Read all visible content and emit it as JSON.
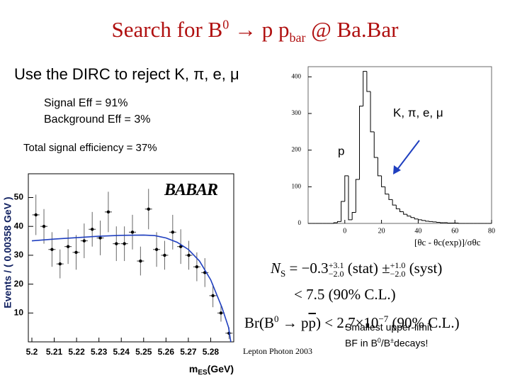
{
  "title": {
    "main": "Search for B",
    "sup": "0",
    "mid": " → p p",
    "sub": "bar",
    "end": " @ Ba.Bar"
  },
  "bullet": "Use the DIRC to reject K, π, e, μ",
  "signal_eff": "Signal Eff = 91%",
  "background_eff": "Background Eff = 3%",
  "total_eff": "Total signal efficiency = 37%",
  "logo": "BABAR",
  "result": {
    "ns": "N",
    "ns_sub": "S",
    "ns_eq": " = −0.3",
    "stat_up": "+3.1",
    "stat_dn": "−2.0",
    "stat": "(stat) ±",
    "syst_up": "+1.0",
    "syst_dn": "−2.0",
    "syst": "(syst)",
    "limit": "< 7.5 (90% C.L.)",
    "br": "Br(B",
    "br_sup": "0",
    "br_mid": " → p",
    "br_bar": "p",
    "br_end": ") < 2.7×10",
    "br_exp": "−7",
    "br_cl": " (90% C.L.)"
  },
  "conference": "Lepton Photon 2003",
  "note": {
    "line1": "Smallest upper-limit",
    "a": "BF in B",
    "sup1": "0",
    "b": "/B",
    "sup2": "±",
    "c": "decays!"
  },
  "chart_data": [
    {
      "type": "scatter",
      "x": [
        5.2018,
        5.2054,
        5.209,
        5.2126,
        5.2162,
        5.2198,
        5.2234,
        5.227,
        5.2306,
        5.2342,
        5.2378,
        5.2414,
        5.245,
        5.2486,
        5.2522,
        5.2558,
        5.2594,
        5.263,
        5.2666,
        5.2702,
        5.2738,
        5.2774,
        5.281,
        5.2846,
        5.2882
      ],
      "values": [
        44,
        40,
        32,
        27,
        33,
        31,
        35,
        39,
        36,
        45,
        34,
        34,
        38,
        28,
        46,
        32,
        30,
        38,
        33,
        30,
        26,
        24,
        16,
        10,
        3
      ],
      "errors": [
        7,
        6,
        6,
        5,
        6,
        6,
        6,
        6,
        6,
        7,
        6,
        6,
        6,
        5,
        7,
        6,
        5,
        6,
        6,
        5,
        5,
        5,
        4,
        3,
        2
      ],
      "color": "#000000",
      "fit": {
        "x": [
          5.2,
          5.21,
          5.22,
          5.23,
          5.24,
          5.25,
          5.255,
          5.26,
          5.265,
          5.27,
          5.275,
          5.28,
          5.285,
          5.288,
          5.289
        ],
        "values": [
          35,
          35.6,
          36.1,
          36.6,
          36.9,
          37,
          36.8,
          36,
          34.5,
          32,
          28,
          21.5,
          12,
          5,
          0
        ],
        "color": "#1f3fbf"
      },
      "xlim": [
        5.2,
        5.29
      ],
      "ylim": [
        0,
        57
      ],
      "xticks": [
        5.2,
        5.21,
        5.22,
        5.23,
        5.24,
        5.25,
        5.26,
        5.27,
        5.28
      ],
      "yticks": [
        10,
        20,
        30,
        40,
        50
      ],
      "ylabel": "Events / ( 0.00358 GeV )",
      "xlabel": {
        "main": "m",
        "sub": "ES",
        "unit": "(GeV)"
      }
    },
    {
      "type": "histogram",
      "bins": [
        -20,
        -18,
        -16,
        -14,
        -12,
        -10,
        -8,
        -6,
        -4,
        -2,
        0,
        2,
        4,
        6,
        8,
        10,
        12,
        14,
        16,
        18,
        20,
        22,
        24,
        26,
        28,
        30,
        32,
        34,
        36,
        38,
        40,
        42,
        44,
        46,
        48,
        50,
        52,
        54,
        56,
        58,
        60,
        62,
        64,
        66,
        68,
        70,
        72,
        74,
        76,
        78,
        80
      ],
      "values": [
        0,
        0,
        0,
        0,
        0,
        0,
        0,
        2,
        5,
        60,
        130,
        10,
        30,
        120,
        320,
        415,
        360,
        250,
        180,
        130,
        100,
        80,
        65,
        50,
        40,
        32,
        25,
        20,
        16,
        12,
        10,
        8,
        6,
        5,
        4,
        3,
        2,
        2,
        1,
        1,
        1,
        0,
        0,
        0,
        0,
        0,
        0,
        0,
        0,
        0
      ],
      "color": "#000000",
      "xlim": [
        -20,
        80
      ],
      "ylim": [
        0,
        420
      ],
      "xticks": [
        0,
        20,
        40,
        60,
        80
      ],
      "yticks": [
        0,
        100,
        200,
        300,
        400
      ],
      "xlabel": "[θc - θc(exp)]/σθc",
      "annotations": [
        "K, π, e, μ",
        "p"
      ]
    }
  ]
}
